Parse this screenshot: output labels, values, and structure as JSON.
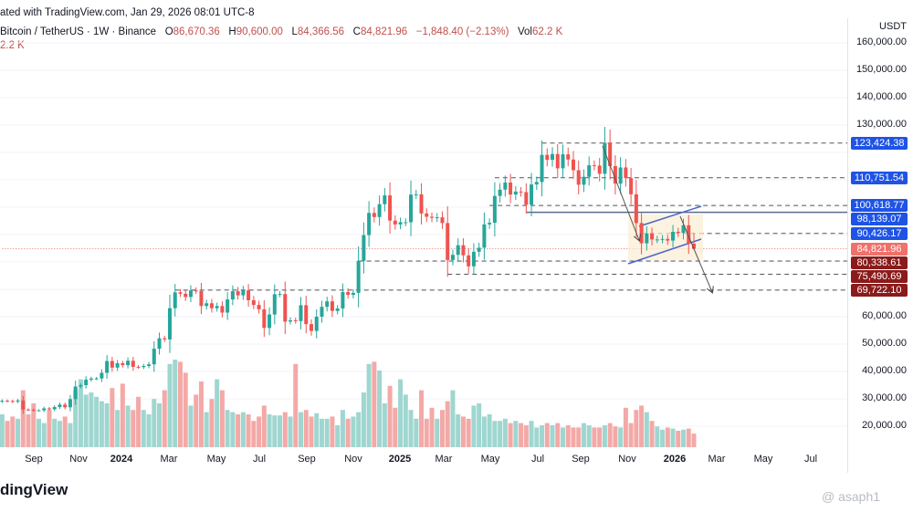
{
  "header": {
    "text": "ated with TradingView.com, Jan 29, 2026 08:01 UTC-8"
  },
  "legend": {
    "symbol": "Bitcoin / TetherUS · 1W · Binance",
    "o_label": "O",
    "open": "86,670.36",
    "h_label": "H",
    "high": "90,600.00",
    "l_label": "L",
    "low": "84,366.56",
    "c_label": "C",
    "close": "84,821.96",
    "change": "−1,848.40 (−2.13%)",
    "vol_label": "Vol",
    "vol": "62.2 K",
    "vol2": "2.2 K"
  },
  "axis": {
    "currency": "USDT",
    "ticks": [
      "160,000.00",
      "150,000.00",
      "140,000.00",
      "130,000.00",
      "60,000.00",
      "50,000.00",
      "40,000.00",
      "30,000.00",
      "20,000.00"
    ]
  },
  "footer": {
    "logo": "dingView",
    "watermark": "@ asaph1"
  },
  "colors": {
    "up": "#26a69a",
    "down": "#ef5350",
    "blue_tag": "#1e53e5",
    "red_tag": "#8b1a1a",
    "current": "#f0706a"
  },
  "chart_data": {
    "type": "candlestick",
    "title": "Bitcoin / TetherUS · 1W · Binance",
    "ylabel": "USDT",
    "ylim": [
      15000,
      165000
    ],
    "first_week": "2023-07-17",
    "x_ticks": [
      "Sep",
      "Nov",
      "2024",
      "Mar",
      "May",
      "Jul",
      "Sep",
      "Nov",
      "2025",
      "Mar",
      "May",
      "Jul",
      "Sep",
      "Nov",
      "2026",
      "Mar",
      "May",
      "Jul"
    ],
    "closes": [
      29300,
      29200,
      29000,
      29400,
      26100,
      26000,
      25800,
      25800,
      26500,
      26200,
      27000,
      27900,
      26900,
      29900,
      34500,
      35000,
      37000,
      37400,
      37450,
      39500,
      43800,
      41400,
      43000,
      42300,
      43900,
      41700,
      41600,
      42000,
      42600,
      48300,
      52100,
      51700,
      63100,
      68900,
      68400,
      67200,
      69600,
      69400,
      63900,
      64900,
      63100,
      63900,
      61500,
      66300,
      69300,
      67800,
      69600,
      66000,
      64300,
      62700,
      55900,
      60800,
      68200,
      68300,
      58200,
      58700,
      58400,
      64200,
      57300,
      54800,
      60000,
      63600,
      65600,
      62100,
      63000,
      69000,
      68000,
      68700,
      80400,
      89800,
      97900,
      96400,
      101100,
      104300,
      95100,
      93700,
      94500,
      94500,
      104600,
      104700,
      97700,
      96500,
      96100,
      96300,
      94200,
      80700,
      82600,
      86100,
      82400,
      78400,
      83700,
      85200,
      93700,
      94300,
      104100,
      106400,
      109000,
      104600,
      105700,
      105500,
      100900,
      108300,
      109200,
      119100,
      117300,
      119400,
      114200,
      119300,
      117400,
      113500,
      108200,
      111100,
      115300,
      115200,
      112200,
      123500,
      115000,
      108600,
      114500,
      110600,
      104700,
      94200,
      86800,
      90400,
      88200,
      88200,
      88400,
      87800,
      91000,
      90600,
      93400,
      86670,
      84822
    ],
    "volumes_k": [
      150,
      120,
      140,
      130,
      260,
      150,
      200,
      130,
      110,
      170,
      130,
      120,
      140,
      110,
      260,
      310,
      240,
      250,
      230,
      210,
      200,
      270,
      170,
      290,
      190,
      170,
      230,
      170,
      150,
      220,
      200,
      260,
      380,
      400,
      390,
      340,
      190,
      240,
      300,
      160,
      220,
      310,
      260,
      170,
      160,
      150,
      160,
      150,
      120,
      140,
      190,
      150,
      145,
      145,
      160,
      140,
      380,
      160,
      170,
      140,
      155,
      130,
      130,
      140,
      100,
      170,
      130,
      140,
      160,
      250,
      380,
      390,
      350,
      200,
      280,
      180,
      310,
      240,
      170,
      130,
      260,
      130,
      180,
      130,
      170,
      210,
      260,
      150,
      140,
      130,
      190,
      200,
      140,
      150,
      120,
      120,
      130,
      110,
      120,
      110,
      100,
      120,
      90,
      100,
      110,
      100,
      110,
      90,
      100,
      90,
      90,
      110,
      100,
      90,
      90,
      100,
      110,
      95,
      90,
      180,
      110,
      170,
      190,
      160,
      120,
      95,
      80,
      90,
      85,
      75,
      80,
      85,
      62.2
    ],
    "last_candle": {
      "open": 86670.36,
      "high": 90600,
      "low": 84366.56,
      "close": 84821.96
    },
    "levels": [
      {
        "value": 123424.38,
        "label": "123,424.38",
        "tag": "blue",
        "style": "dashed",
        "from": "2025-07-07"
      },
      {
        "value": 110751.54,
        "label": "110,751.54",
        "tag": "blue",
        "style": "dashed",
        "from": "2025-05-05"
      },
      {
        "value": 100618.77,
        "label": "100,618.77",
        "tag": "blue",
        "style": "dashed",
        "from": "2025-04-28"
      },
      {
        "value": 98139.07,
        "label": "98,139.07",
        "tag": "blue",
        "style": "solid",
        "from": "2025-06-16"
      },
      {
        "value": 90426.17,
        "label": "90,426.17",
        "tag": "blue",
        "style": "dashed",
        "from": "2025-11-17"
      },
      {
        "value": 84821.96,
        "label": "84,821.96",
        "tag": "current",
        "style": "dotted",
        "from": "2023-07-17"
      },
      {
        "value": 80338.61,
        "label": "80,338.61",
        "tag": "red",
        "style": "dashed",
        "from": "2024-11-04"
      },
      {
        "value": 75490.69,
        "label": "75,490.69",
        "tag": "red",
        "style": "dashed",
        "from": "2025-03-03"
      },
      {
        "value": 69722.1,
        "label": "69,722.10",
        "tag": "red",
        "style": "dashed",
        "from": "2024-03-04"
      }
    ]
  }
}
